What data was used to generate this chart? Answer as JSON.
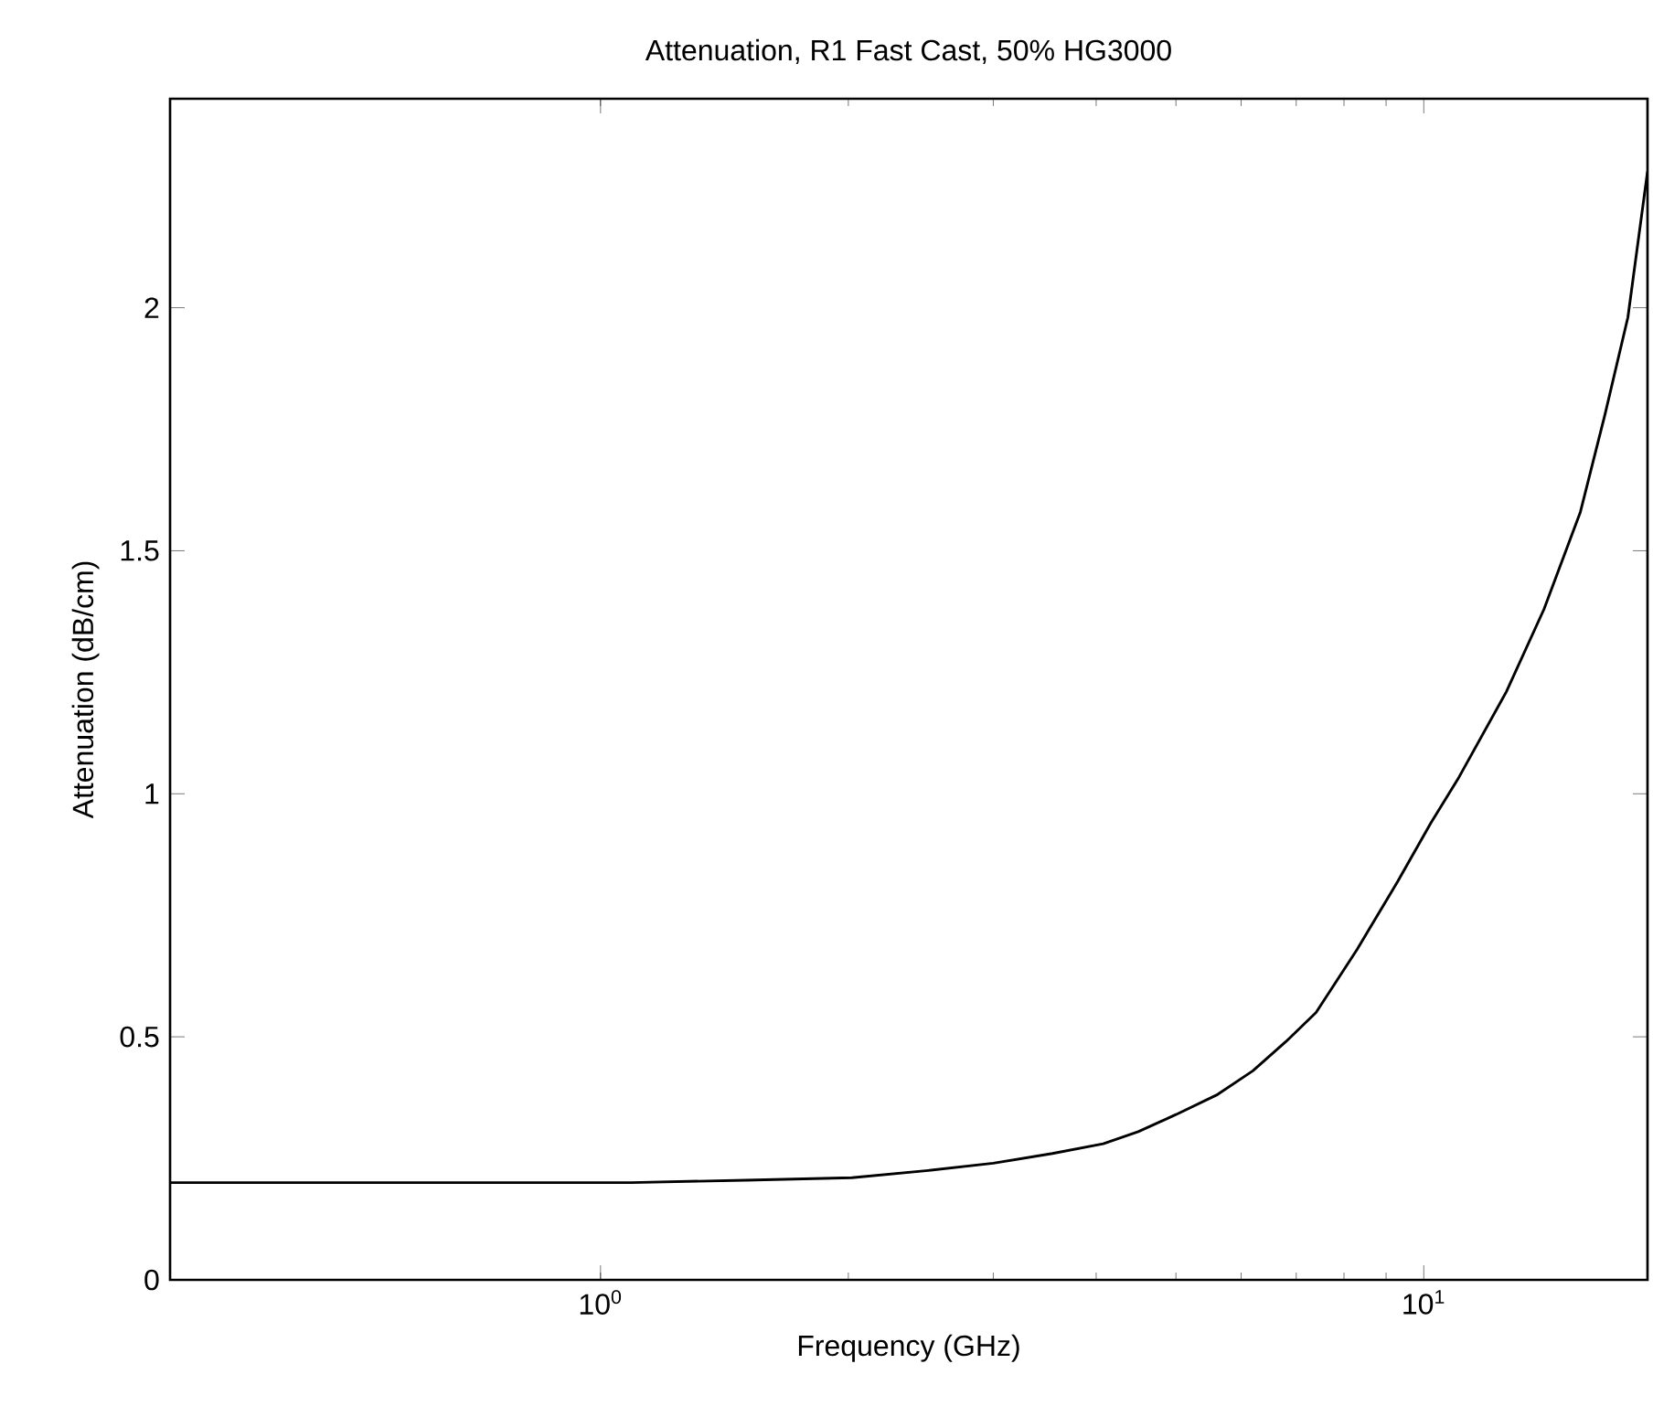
{
  "chart_data": {
    "type": "line",
    "title": "Attenuation, R1 Fast Cast, 50% HG3000",
    "xlabel": "Frequency (GHz)",
    "ylabel": "Attenuation (dB/cm)",
    "log": "x",
    "xlim": [
      0.3,
      18.7
    ],
    "ylim": [
      0,
      2.43
    ],
    "xticks": [
      {
        "value": 1,
        "label": "10$^{0}$"
      },
      {
        "value": 10,
        "label": "10$^{1}$"
      }
    ],
    "yticks": [
      0,
      0.5,
      1,
      1.5,
      2
    ],
    "series": [
      {
        "color": "#000000",
        "x": [
          0.3,
          0.5,
          0.8,
          1.09,
          1.5,
          2.02,
          2.5,
          3.0,
          3.54,
          4.08,
          4.5,
          5.0,
          5.6,
          6.2,
          6.8,
          7.4,
          8.3,
          9.3,
          10.2,
          11.0,
          12.6,
          14.0,
          15.5,
          16.6,
          17.7,
          18.7
        ],
        "values": [
          0.2,
          0.2,
          0.2,
          0.2,
          0.205,
          0.21,
          0.225,
          0.24,
          0.26,
          0.28,
          0.305,
          0.34,
          0.38,
          0.43,
          0.49,
          0.55,
          0.68,
          0.82,
          0.94,
          1.03,
          1.21,
          1.38,
          1.58,
          1.78,
          1.98,
          2.28
        ]
      }
    ],
    "marker": "none",
    "line_style": "solid"
  }
}
